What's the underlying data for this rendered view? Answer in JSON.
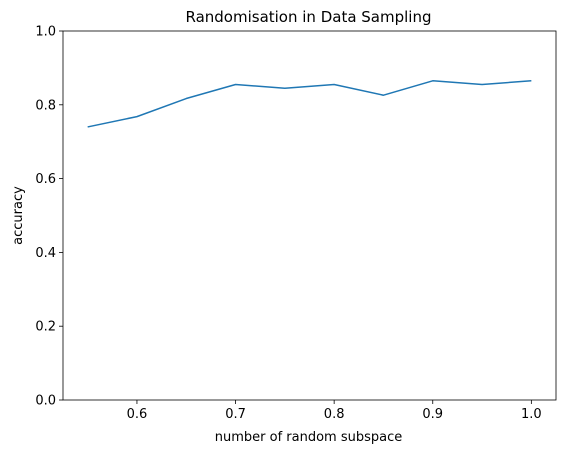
{
  "chart_data": {
    "type": "line",
    "title": "Randomisation in Data Sampling",
    "xlabel": "number of random subspace",
    "ylabel": "accuracy",
    "xlim": [
      0.525,
      1.025
    ],
    "ylim": [
      0.0,
      1.0
    ],
    "xticks": [
      0.6,
      0.7,
      0.8,
      0.9,
      1.0
    ],
    "xtick_labels": [
      "0.6",
      "0.7",
      "0.8",
      "0.9",
      "1.0"
    ],
    "yticks": [
      0.0,
      0.2,
      0.4,
      0.6,
      0.8,
      1.0
    ],
    "ytick_labels": [
      "0.0",
      "0.2",
      "0.4",
      "0.6",
      "0.8",
      "1.0"
    ],
    "grid": false,
    "series": [
      {
        "color": "#1f77b4",
        "x": [
          0.55,
          0.6,
          0.65,
          0.7,
          0.75,
          0.8,
          0.85,
          0.9,
          0.95,
          1.0
        ],
        "y": [
          0.74,
          0.768,
          0.817,
          0.855,
          0.845,
          0.855,
          0.826,
          0.865,
          0.855,
          0.865
        ]
      }
    ]
  }
}
